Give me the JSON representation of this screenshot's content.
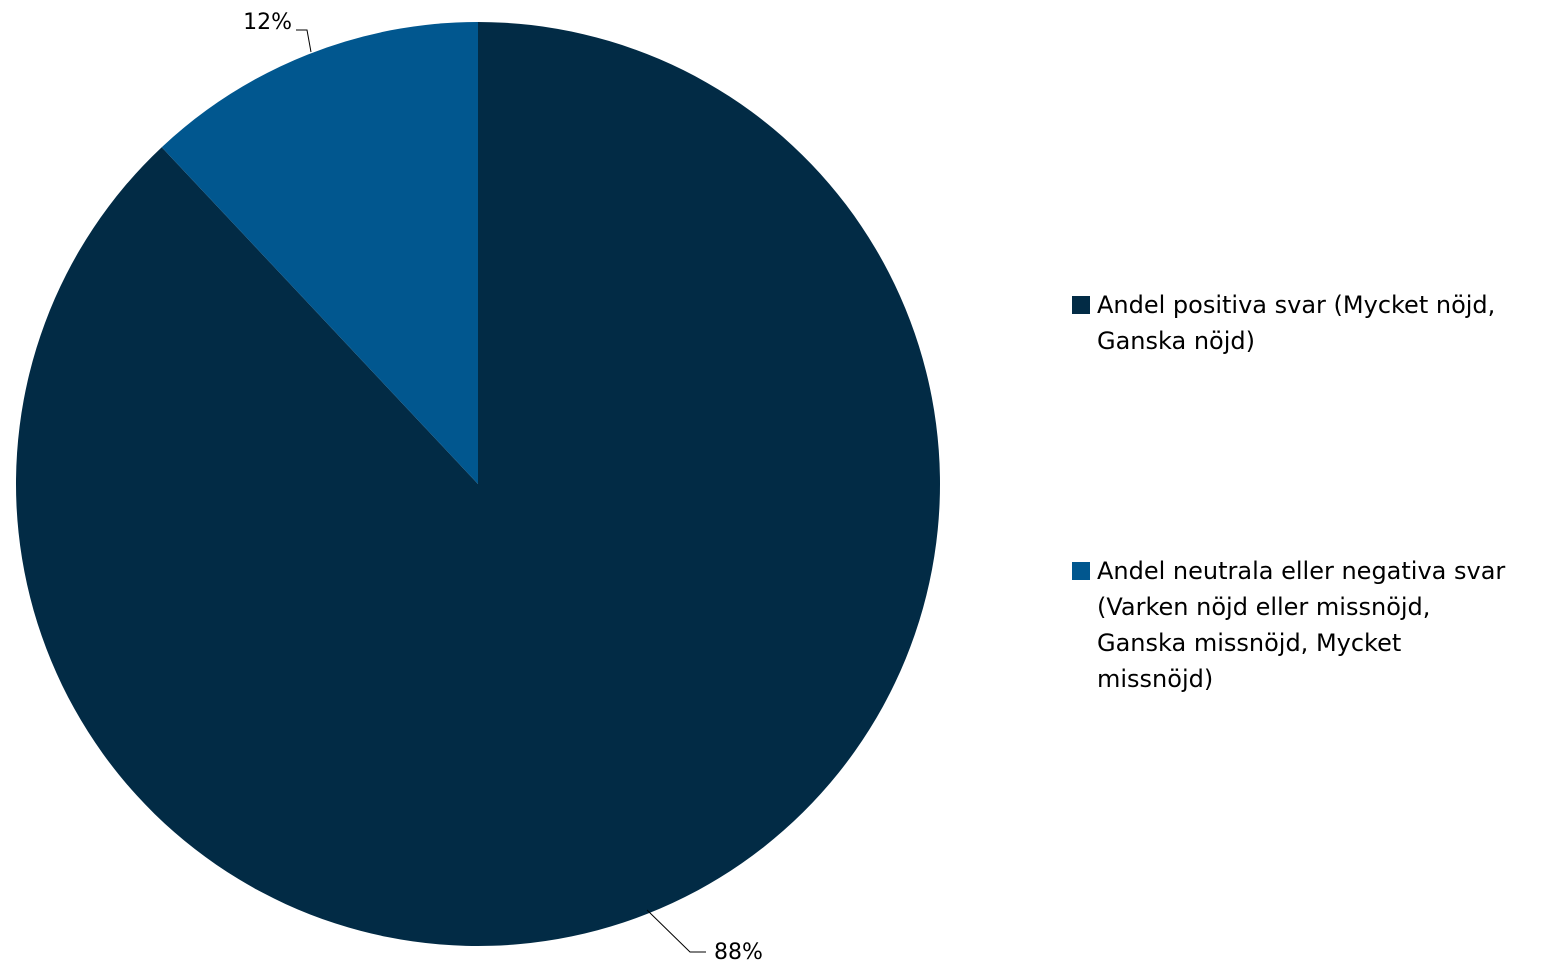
{
  "chart_data": {
    "type": "pie",
    "categories": [
      "Andel positiva svar (Mycket nöjd, Ganska nöjd)",
      "Andel neutrala eller negativa svar (Varken nöjd eller missnöjd, Ganska missnöjd, Mycket missnöjd)"
    ],
    "values": [
      88,
      12
    ],
    "data_labels": [
      "88%",
      "12%"
    ],
    "colors": [
      "#022b45",
      "#01578f"
    ],
    "legend_position": "right",
    "legend_lines": [
      [
        "Andel positiva svar (Mycket nöjd,",
        "Ganska nöjd)"
      ],
      [
        "Andel neutrala eller negativa svar",
        "(Varken nöjd eller missnöjd,",
        "Ganska missnöjd, Mycket",
        "missnöjd)"
      ]
    ]
  }
}
